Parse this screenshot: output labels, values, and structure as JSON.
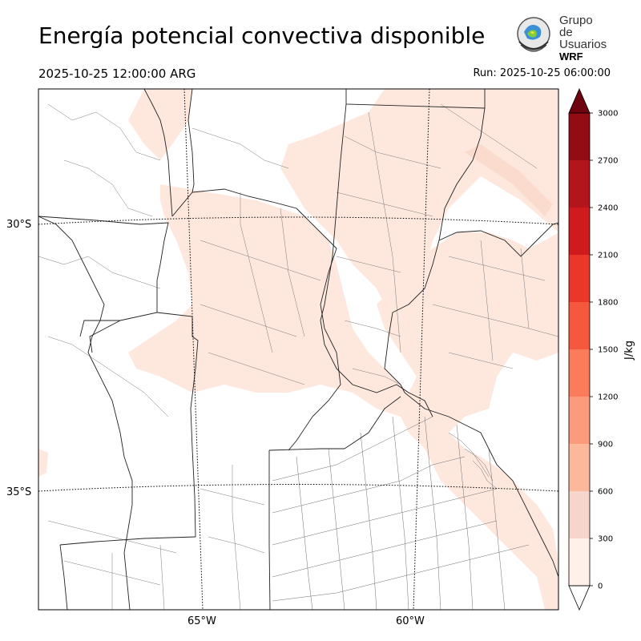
{
  "header": {
    "title": "Energía potencial convectiva disponible",
    "valid_time": "2025-10-25 12:00:00 ARG",
    "run_time": "Run: 2025-10-25 06:00:00"
  },
  "logo": {
    "line1": "Grupo de",
    "line2": "Usuarios",
    "line3": "WRF"
  },
  "map": {
    "lat_labels": [
      "30°S",
      "35°S"
    ],
    "lon_labels": [
      "65°W",
      "60°W"
    ],
    "field_color": "#fee8de"
  },
  "colorbar": {
    "label": "J/kg",
    "ticks": [
      "0",
      "300",
      "600",
      "900",
      "1200",
      "1500",
      "1800",
      "2100",
      "2400",
      "2700",
      "3000"
    ],
    "colors": [
      "#fff0ea",
      "#f6d5cc",
      "#fcb89b",
      "#fc9b7c",
      "#fb7b5b",
      "#f6583e",
      "#eb362a",
      "#cf1b1d",
      "#b3151c",
      "#930c14",
      "#6e0410"
    ],
    "extend_max_color": "#6e0410",
    "extend_min_color": "#ffffff"
  }
}
